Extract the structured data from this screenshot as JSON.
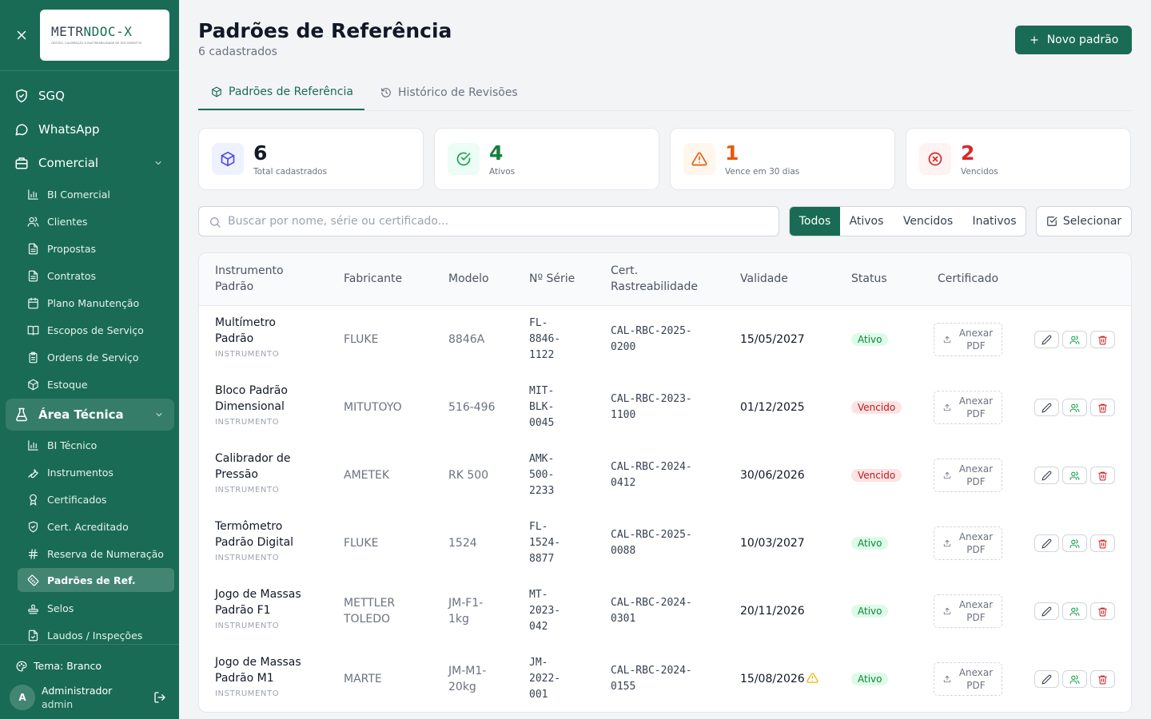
{
  "sidebar": {
    "logo": {
      "title_a": "METR",
      "title_b": "NDOC",
      "title_c": "-X",
      "subtitle": "GESTÃO, CALIBRAÇÃO E RASTREABILIDADE DE DOCUMENTOS"
    },
    "top_items": [
      {
        "label": "SGQ",
        "icon": "shield-icon"
      },
      {
        "label": "WhatsApp",
        "icon": "chat-bubble-icon"
      },
      {
        "label": "Comercial",
        "icon": "building-icon"
      }
    ],
    "comercial_items": [
      {
        "label": "BI Comercial",
        "icon": "bar-chart-icon"
      },
      {
        "label": "Clientes",
        "icon": "users-icon"
      },
      {
        "label": "Propostas",
        "icon": "document-icon"
      },
      {
        "label": "Contratos",
        "icon": "document-icon"
      },
      {
        "label": "Plano Manutenção",
        "icon": "calendar-icon"
      },
      {
        "label": "Escopos de Serviço",
        "icon": "book-icon"
      },
      {
        "label": "Ordens de Serviço",
        "icon": "clipboard-icon"
      },
      {
        "label": "Estoque",
        "icon": "package-icon"
      }
    ],
    "area_tecnica": {
      "label": "Área Técnica",
      "icon": "flask-icon"
    },
    "tecnica_items": [
      {
        "label": "BI Técnico",
        "icon": "bar-chart-icon"
      },
      {
        "label": "Instrumentos",
        "icon": "wrench-icon"
      },
      {
        "label": "Certificados",
        "icon": "award-icon"
      },
      {
        "label": "Cert. Acreditado",
        "icon": "shield-check-icon"
      },
      {
        "label": "Reserva de Numeração",
        "icon": "hash-icon"
      },
      {
        "label": "Padrões de Ref.",
        "icon": "ruler-icon"
      },
      {
        "label": "Selos",
        "icon": "stamp-icon"
      },
      {
        "label": "Laudos / Inspeções",
        "icon": "file-check-icon"
      }
    ],
    "theme_label": "Tema: Branco",
    "user": {
      "initial": "A",
      "name": "Administrador",
      "role": "admin"
    }
  },
  "header": {
    "title": "Padrões de Referência",
    "subtitle": "6 cadastrados",
    "new_button": "Novo padrão"
  },
  "tabs": [
    {
      "label": "Padrões de Referência",
      "active": true
    },
    {
      "label": "Histórico de Revisões",
      "active": false
    }
  ],
  "stats": [
    {
      "value": "6",
      "label": "Total cadastrados",
      "color": "#111827",
      "bg": "#eef2ff",
      "icon_color": "#4f46e5",
      "icon": "package-icon"
    },
    {
      "value": "4",
      "label": "Ativos",
      "color": "#15803d",
      "bg": "#ecfdf5",
      "icon_color": "#16a34a",
      "icon": "check-circle-icon"
    },
    {
      "value": "1",
      "label": "Vence em 30 dias",
      "color": "#ea580c",
      "bg": "#fff7ed",
      "icon_color": "#ea580c",
      "icon": "warning-icon"
    },
    {
      "value": "2",
      "label": "Vencidos",
      "color": "#dc2626",
      "bg": "#fef2f2",
      "icon_color": "#dc2626",
      "icon": "x-circle-icon"
    }
  ],
  "search": {
    "placeholder": "Buscar por nome, série ou certificado...",
    "value": ""
  },
  "filters": [
    {
      "label": "Todos",
      "active": true
    },
    {
      "label": "Ativos",
      "active": false
    },
    {
      "label": "Vencidos",
      "active": false
    },
    {
      "label": "Inativos",
      "active": false
    }
  ],
  "select_button": "Selecionar",
  "table": {
    "columns": {
      "instrumento": [
        "Instrumento",
        "Padrão"
      ],
      "fabricante": "Fabricante",
      "modelo": "Modelo",
      "serie": "Nº Série",
      "cert": [
        "Cert.",
        "Rastreabilidade"
      ],
      "validade": "Validade",
      "status": "Status",
      "certificado": "Certificado"
    },
    "attach_label": [
      "Anexar",
      "PDF"
    ],
    "rows": [
      {
        "name": [
          "Multímetro",
          "Padrão"
        ],
        "type": "INSTRUMENTO",
        "fabricante": [
          "FLUKE"
        ],
        "modelo": [
          "8846A"
        ],
        "serie": [
          "FL-",
          "8846-",
          "1122"
        ],
        "cert": [
          "CAL-RBC-2025-",
          "0200"
        ],
        "validade": "15/05/2027",
        "warn": false,
        "status": "Ativo"
      },
      {
        "name": [
          "Bloco Padrão",
          "Dimensional"
        ],
        "type": "INSTRUMENTO",
        "fabricante": [
          "MITUTOYO"
        ],
        "modelo": [
          "516-496"
        ],
        "serie": [
          "MIT-",
          "BLK-",
          "0045"
        ],
        "cert": [
          "CAL-RBC-2023-",
          "1100"
        ],
        "validade": "01/12/2025",
        "warn": false,
        "status": "Vencido"
      },
      {
        "name": [
          "Calibrador de",
          "Pressão"
        ],
        "type": "INSTRUMENTO",
        "fabricante": [
          "AMETEK"
        ],
        "modelo": [
          "RK 500"
        ],
        "serie": [
          "AMK-",
          "500-",
          "2233"
        ],
        "cert": [
          "CAL-RBC-2024-",
          "0412"
        ],
        "validade": "30/06/2026",
        "warn": false,
        "status": "Vencido"
      },
      {
        "name": [
          "Termômetro",
          "Padrão Digital"
        ],
        "type": "INSTRUMENTO",
        "fabricante": [
          "FLUKE"
        ],
        "modelo": [
          "1524"
        ],
        "serie": [
          "FL-",
          "1524-",
          "8877"
        ],
        "cert": [
          "CAL-RBC-2025-",
          "0088"
        ],
        "validade": "10/03/2027",
        "warn": false,
        "status": "Ativo"
      },
      {
        "name": [
          "Jogo de Massas",
          "Padrão F1"
        ],
        "type": "INSTRUMENTO",
        "fabricante": [
          "METTLER",
          "TOLEDO"
        ],
        "modelo": [
          "JM-F1-",
          "1kg"
        ],
        "serie": [
          "MT-",
          "2023-",
          "042"
        ],
        "cert": [
          "CAL-RBC-2024-",
          "0301"
        ],
        "validade": "20/11/2026",
        "warn": false,
        "status": "Ativo"
      },
      {
        "name": [
          "Jogo de Massas",
          "Padrão M1"
        ],
        "type": "INSTRUMENTO",
        "fabricante": [
          "MARTE"
        ],
        "modelo": [
          "JM-M1-",
          "20kg"
        ],
        "serie": [
          "JM-",
          "2022-",
          "001"
        ],
        "cert": [
          "CAL-RBC-2024-",
          "0155"
        ],
        "validade": "15/08/2026",
        "warn": true,
        "status": "Ativo"
      }
    ]
  }
}
